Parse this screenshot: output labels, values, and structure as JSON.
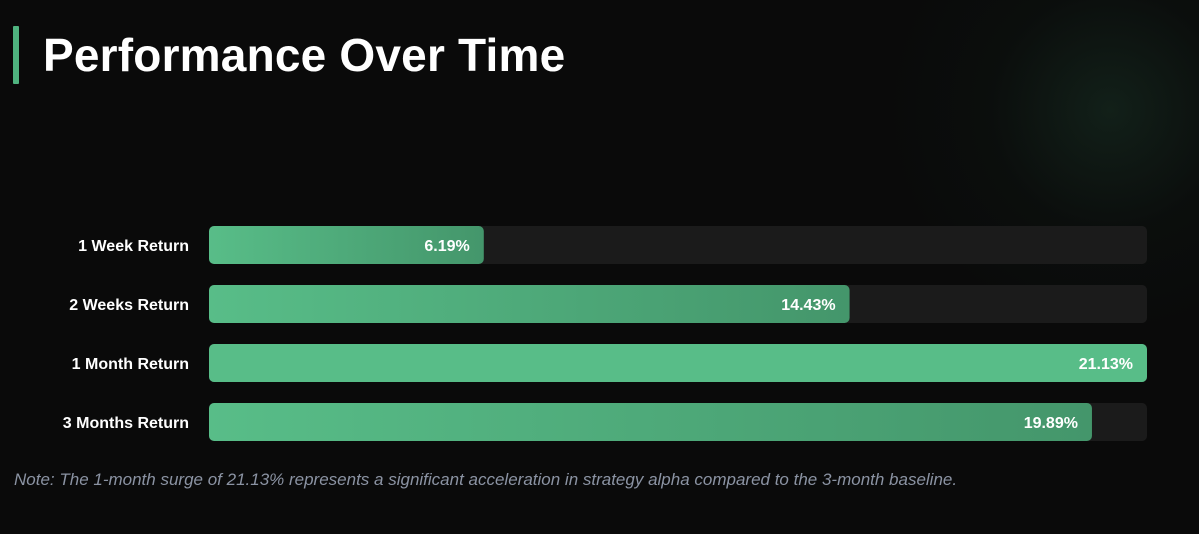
{
  "title": "Performance Over Time",
  "note": "Note: The 1-month surge of 21.13% represents a significant acceleration in strategy alpha compared to the 3-month baseline.",
  "colors": {
    "background": "#0a0a0a",
    "accent": "#4fb37f",
    "bar_fill_start": "#58bd88",
    "bar_fill_end": "#44966b",
    "track": "#1b1b1b",
    "label_text": "#ffffff",
    "note_text": "#8b93a3"
  },
  "chart_data": {
    "type": "bar",
    "orientation": "horizontal",
    "categories": [
      "1 Week Return",
      "2 Weeks Return",
      "1 Month Return",
      "3 Months Return"
    ],
    "values": [
      6.19,
      14.43,
      21.13,
      19.89
    ],
    "value_labels": [
      "6.19%",
      "14.43%",
      "21.13%",
      "19.89%"
    ],
    "xlim": [
      0,
      21.13
    ],
    "grid": false,
    "legend": "none"
  }
}
